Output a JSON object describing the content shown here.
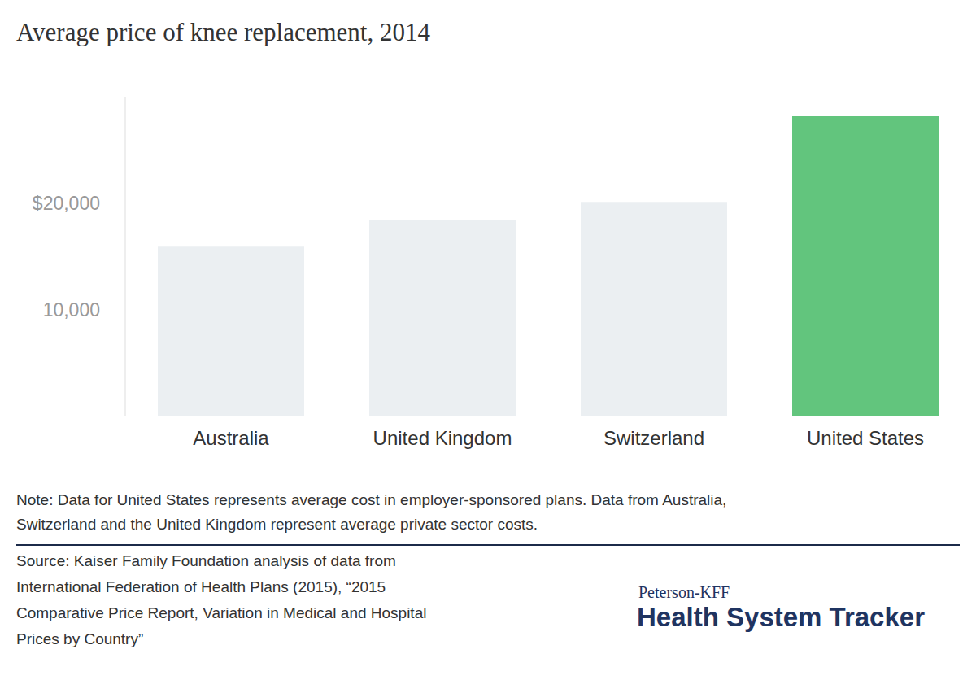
{
  "chart_data": {
    "type": "bar",
    "title": "Average price of knee replacement, 2014",
    "categories": [
      "Australia",
      "United Kingdom",
      "Switzerland",
      "United States"
    ],
    "values": [
      15941,
      18451,
      20132,
      28184
    ],
    "colors": [
      "#ebeff2",
      "#ebeff2",
      "#ebeff2",
      "#62c57d"
    ],
    "ylim": [
      0,
      30000
    ],
    "yticks": [
      {
        "value": 10000,
        "label": "10,000"
      },
      {
        "value": 20000,
        "label": "$20,000"
      }
    ],
    "grid": false,
    "note": [
      "Note: Data for United States represents average cost in employer-sponsored plans. Data from Australia,",
      "Switzerland and the United Kingdom represent average private sector costs."
    ],
    "source": [
      "Source: Kaiser Family Foundation analysis of data from",
      "International Federation of Health Plans (2015), “2015",
      "Comparative Price Report, Variation in Medical and Hospital",
      "Prices by Country”"
    ],
    "credit": [
      "Peterson-KFF",
      "Health System Tracker"
    ]
  }
}
